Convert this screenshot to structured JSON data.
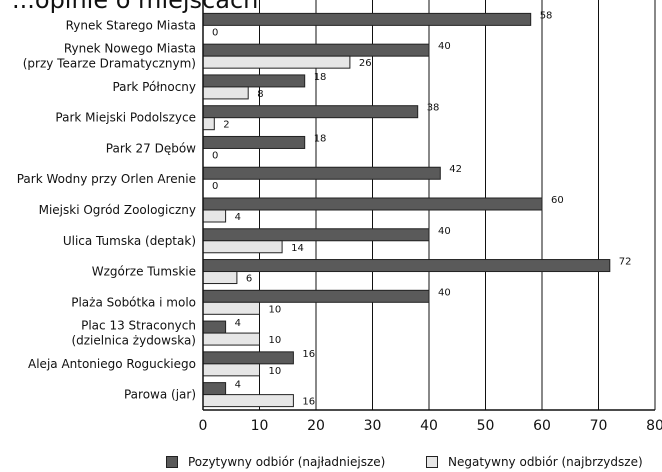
{
  "title": "...opinie o miejscach",
  "chart_data": {
    "type": "bar",
    "orientation": "horizontal",
    "categories": [
      [
        "Rynek Starego Miasta"
      ],
      [
        "Rynek Nowego Miasta",
        "(przy Tearze Dramatycznym)"
      ],
      [
        "Park Północny"
      ],
      [
        "Park Miejski Podolszyce"
      ],
      [
        "Park 27 Dębów"
      ],
      [
        "Park Wodny przy Orlen Arenie"
      ],
      [
        "Miejski Ogród Zoologiczny"
      ],
      [
        "Ulica Tumska (deptak)"
      ],
      [
        "Wzgórze Tumskie"
      ],
      [
        "Plaża Sobótka i molo"
      ],
      [
        "Plac 13 Straconych",
        "(dzielnica żydowska)"
      ],
      [
        "Aleja Antoniego Roguckiego"
      ],
      [
        "Parowa (jar)"
      ]
    ],
    "series": [
      {
        "name": "Pozytywny odbiór (najładniejsze)",
        "color": "#5a5a5a",
        "values": [
          58,
          40,
          18,
          38,
          18,
          42,
          60,
          40,
          72,
          40,
          4,
          16,
          4
        ]
      },
      {
        "name": "Negatywny odbiór (najbrzydsze)",
        "color": "#e6e6e6",
        "values": [
          0,
          26,
          8,
          2,
          0,
          0,
          4,
          14,
          6,
          10,
          10,
          10,
          16
        ]
      }
    ],
    "xlim": [
      0,
      80
    ],
    "xticks": [
      0,
      10,
      20,
      30,
      40,
      50,
      60,
      70,
      80
    ],
    "grid": "vertical",
    "legend": "bottom"
  }
}
